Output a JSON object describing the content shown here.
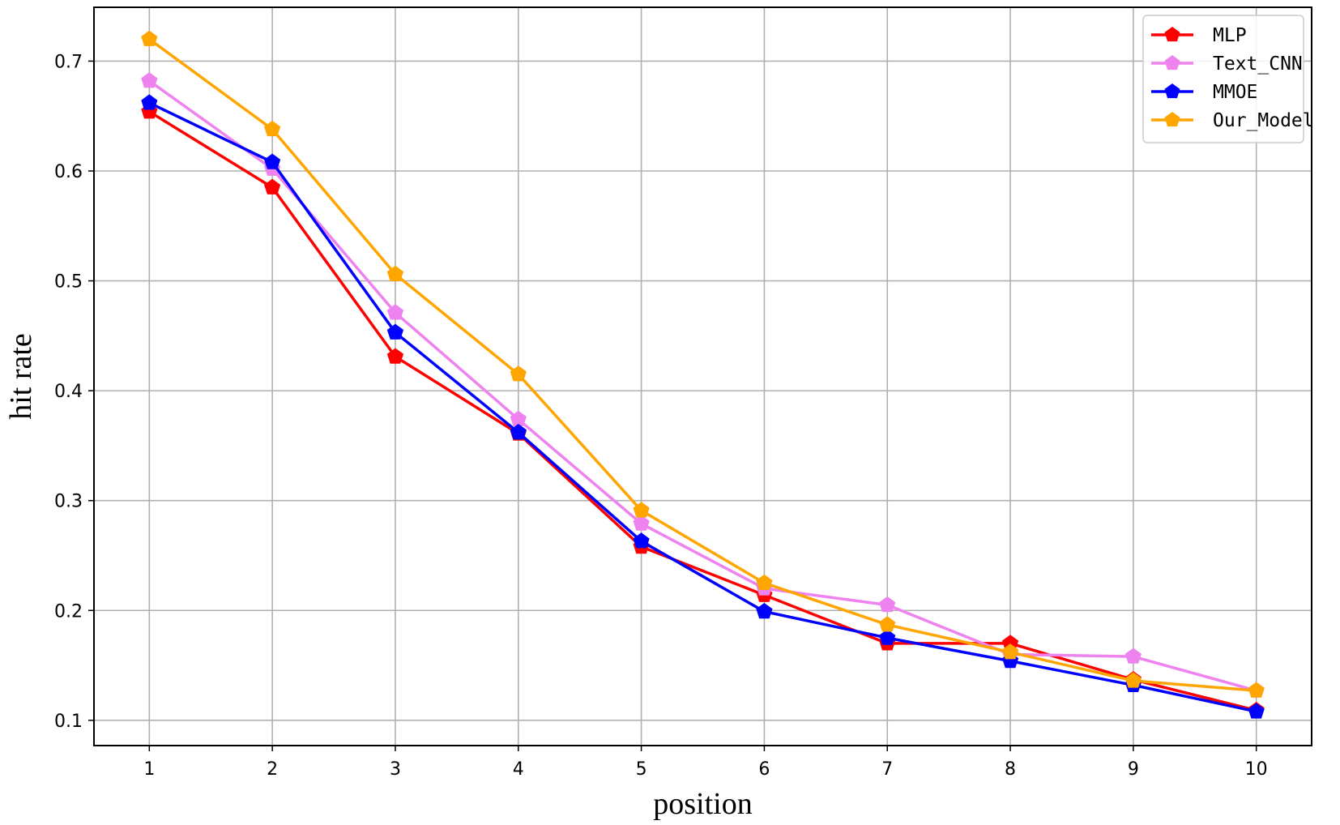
{
  "chart_data": {
    "type": "line",
    "xlabel": "position",
    "ylabel": "hit rate",
    "x": [
      1,
      2,
      3,
      4,
      5,
      6,
      7,
      8,
      9,
      10
    ],
    "xlim": [
      0.55,
      10.45
    ],
    "ylim": [
      0.077,
      0.749
    ],
    "yticks": [
      0.1,
      0.2,
      0.3,
      0.4,
      0.5,
      0.6,
      0.7
    ],
    "ytick_labels": [
      "0.1",
      "0.2",
      "0.3",
      "0.4",
      "0.5",
      "0.6",
      "0.7"
    ],
    "xtick_labels": [
      "1",
      "2",
      "3",
      "4",
      "5",
      "6",
      "7",
      "8",
      "9",
      "10"
    ],
    "grid": true,
    "legend_position": "top-right",
    "marker": "pentagon",
    "series": [
      {
        "name": "MLP",
        "color": "#ff0000",
        "values": [
          0.654,
          0.585,
          0.431,
          0.361,
          0.258,
          0.214,
          0.17,
          0.17,
          0.137,
          0.109
        ]
      },
      {
        "name": "Text_CNN",
        "color": "#ee82ee",
        "values": [
          0.682,
          0.602,
          0.471,
          0.374,
          0.279,
          0.22,
          0.205,
          0.16,
          0.158,
          0.127
        ]
      },
      {
        "name": "MMOE",
        "color": "#0000ff",
        "values": [
          0.662,
          0.608,
          0.453,
          0.362,
          0.263,
          0.199,
          0.175,
          0.154,
          0.132,
          0.108
        ]
      },
      {
        "name": "Our_Model",
        "color": "#ffa500",
        "values": [
          0.72,
          0.638,
          0.506,
          0.415,
          0.291,
          0.225,
          0.187,
          0.162,
          0.136,
          0.127
        ]
      }
    ]
  }
}
